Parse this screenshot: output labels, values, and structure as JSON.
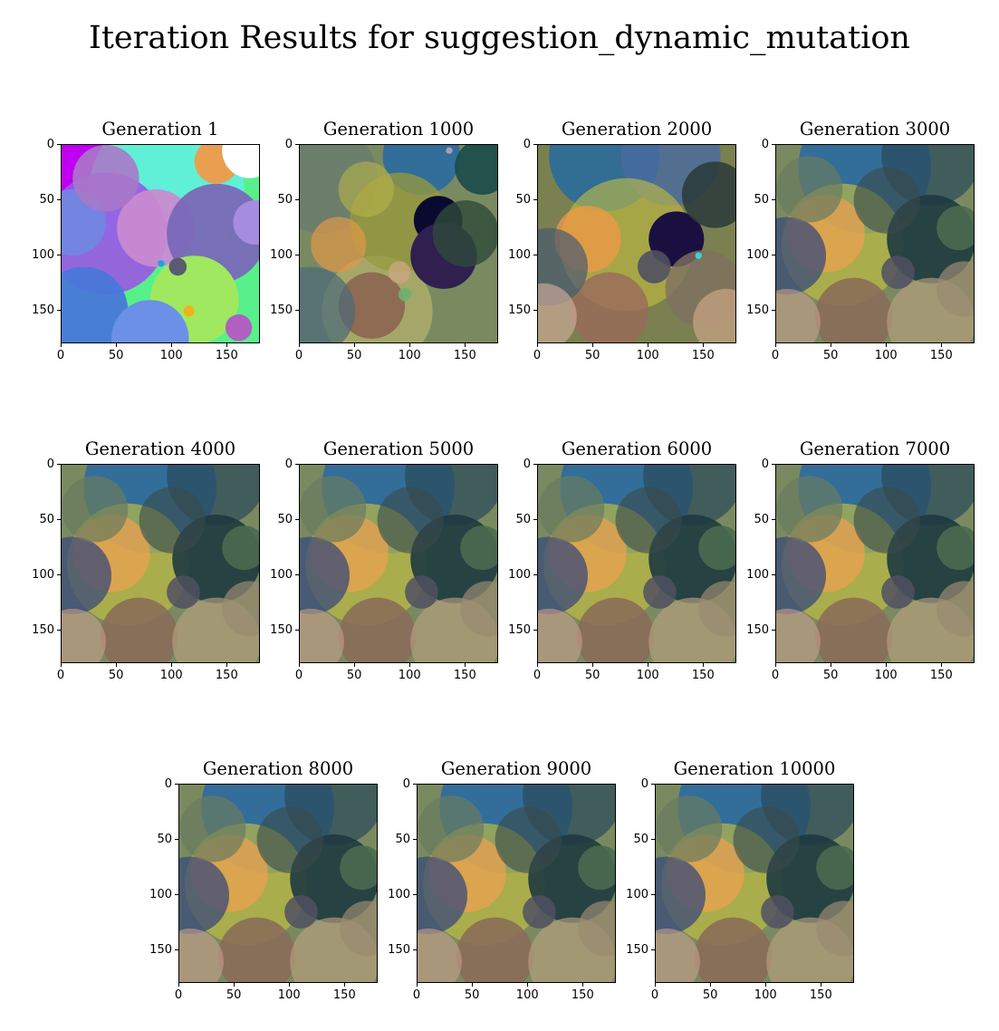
{
  "title": "Iteration Results for suggestion_dynamic_mutation",
  "chart_data": {
    "type": "image-grid",
    "title": "Iteration Results for suggestion_dynamic_mutation",
    "xlim": [
      0,
      180
    ],
    "ylim": [
      180,
      0
    ],
    "xticks": [
      "0",
      "50",
      "100",
      "150"
    ],
    "yticks": [
      "0",
      "50",
      "100",
      "150"
    ],
    "panels": [
      {
        "title": "Generation 1",
        "palette": "generation-1"
      },
      {
        "title": "Generation 1000",
        "palette": "generation-1000"
      },
      {
        "title": "Generation 2000",
        "palette": "generation-2000"
      },
      {
        "title": "Generation 3000",
        "palette": "late"
      },
      {
        "title": "Generation 4000",
        "palette": "late"
      },
      {
        "title": "Generation 5000",
        "palette": "late"
      },
      {
        "title": "Generation 6000",
        "palette": "late"
      },
      {
        "title": "Generation 7000",
        "palette": "late"
      },
      {
        "title": "Generation 8000",
        "palette": "late"
      },
      {
        "title": "Generation 9000",
        "palette": "late"
      },
      {
        "title": "Generation 10000",
        "palette": "late"
      }
    ]
  }
}
